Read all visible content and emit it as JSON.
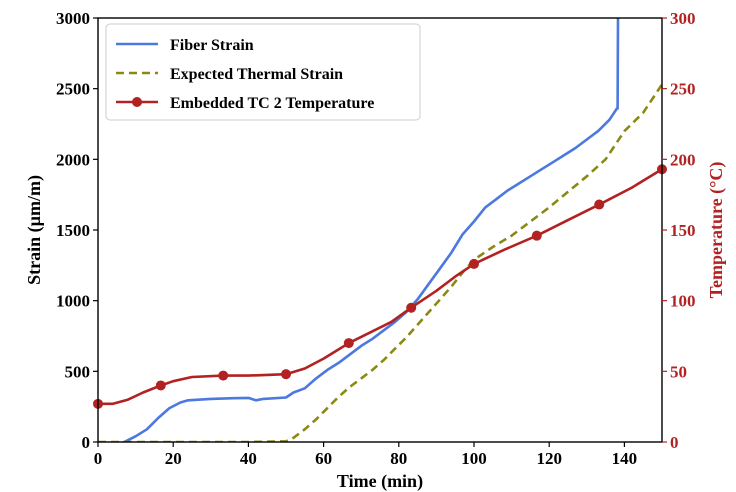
{
  "chart_data": {
    "type": "line",
    "title": "",
    "xlabel": "Time (min)",
    "ylabel_left": "Strain (µm/m)",
    "ylabel_right": "Temperature (°C)",
    "xlim": [
      0,
      150
    ],
    "ylim_left": [
      0,
      3000
    ],
    "ylim_right": [
      0,
      300
    ],
    "x_ticks": [
      0,
      20,
      40,
      60,
      80,
      100,
      120,
      140
    ],
    "y_left_ticks": [
      0,
      500,
      1000,
      1500,
      2000,
      2500,
      3000
    ],
    "y_right_ticks": [
      0,
      50,
      100,
      150,
      200,
      250,
      300
    ],
    "grid": false,
    "legend_position": "top-left",
    "series": [
      {
        "name": "Fiber Strain",
        "axis": "left",
        "color": "#4c78e0",
        "style": "solid",
        "markers": false,
        "points": [
          [
            5,
            -20
          ],
          [
            7,
            0
          ],
          [
            10,
            40
          ],
          [
            13,
            90
          ],
          [
            16,
            170
          ],
          [
            19,
            240
          ],
          [
            22,
            280
          ],
          [
            24,
            295
          ],
          [
            30,
            305
          ],
          [
            36,
            310
          ],
          [
            40,
            312
          ],
          [
            42,
            295
          ],
          [
            44,
            305
          ],
          [
            50,
            315
          ],
          [
            52,
            350
          ],
          [
            55,
            380
          ],
          [
            58,
            450
          ],
          [
            61,
            510
          ],
          [
            64,
            560
          ],
          [
            67,
            620
          ],
          [
            70,
            680
          ],
          [
            73,
            730
          ],
          [
            76,
            790
          ],
          [
            79,
            850
          ],
          [
            82,
            920
          ],
          [
            85,
            1010
          ],
          [
            88,
            1120
          ],
          [
            91,
            1230
          ],
          [
            94,
            1340
          ],
          [
            97,
            1470
          ],
          [
            100,
            1560
          ],
          [
            103,
            1660
          ],
          [
            106,
            1720
          ],
          [
            109,
            1780
          ],
          [
            112,
            1830
          ],
          [
            115,
            1880
          ],
          [
            118,
            1930
          ],
          [
            121,
            1980
          ],
          [
            124,
            2030
          ],
          [
            127,
            2080
          ],
          [
            130,
            2140
          ],
          [
            133,
            2200
          ],
          [
            136,
            2280
          ],
          [
            138,
            2360
          ],
          [
            138.2,
            2360
          ],
          [
            138.3,
            3000
          ]
        ]
      },
      {
        "name": "Expected Thermal Strain",
        "axis": "left",
        "color": "#8a8a12",
        "style": "dashed",
        "markers": false,
        "points": [
          [
            0,
            0
          ],
          [
            20,
            0
          ],
          [
            40,
            0
          ],
          [
            50,
            5
          ],
          [
            52,
            30
          ],
          [
            55,
            90
          ],
          [
            58,
            160
          ],
          [
            61,
            240
          ],
          [
            64,
            320
          ],
          [
            67,
            390
          ],
          [
            70,
            450
          ],
          [
            73,
            510
          ],
          [
            76,
            580
          ],
          [
            79,
            660
          ],
          [
            82,
            740
          ],
          [
            85,
            830
          ],
          [
            88,
            920
          ],
          [
            91,
            1010
          ],
          [
            94,
            1100
          ],
          [
            97,
            1200
          ],
          [
            100,
            1290
          ],
          [
            105,
            1380
          ],
          [
            110,
            1460
          ],
          [
            115,
            1560
          ],
          [
            120,
            1660
          ],
          [
            125,
            1770
          ],
          [
            130,
            1880
          ],
          [
            135,
            2000
          ],
          [
            140,
            2200
          ],
          [
            145,
            2330
          ],
          [
            150,
            2530
          ]
        ]
      },
      {
        "name": "Embedded TC 2 Temperature",
        "axis": "right",
        "color": "#b22222",
        "style": "solid",
        "markers": true,
        "marker_points": [
          [
            0,
            27
          ],
          [
            16.7,
            40
          ],
          [
            33.3,
            47
          ],
          [
            50,
            48
          ],
          [
            66.7,
            70
          ],
          [
            83.3,
            95
          ],
          [
            100,
            126
          ],
          [
            116.7,
            146
          ],
          [
            133.3,
            168
          ],
          [
            150,
            193
          ]
        ],
        "points": [
          [
            0,
            27
          ],
          [
            4,
            27
          ],
          [
            8,
            30
          ],
          [
            12,
            35
          ],
          [
            16.7,
            40
          ],
          [
            20,
            43
          ],
          [
            25,
            46
          ],
          [
            33.3,
            47
          ],
          [
            40,
            47
          ],
          [
            50,
            48
          ],
          [
            55,
            52
          ],
          [
            60,
            59
          ],
          [
            66.7,
            70
          ],
          [
            72,
            77
          ],
          [
            78,
            85
          ],
          [
            83.3,
            95
          ],
          [
            90,
            107
          ],
          [
            95,
            117
          ],
          [
            100,
            126
          ],
          [
            108,
            136
          ],
          [
            116.7,
            146
          ],
          [
            125,
            157
          ],
          [
            133.3,
            168
          ],
          [
            142,
            180
          ],
          [
            150,
            193
          ]
        ]
      }
    ]
  }
}
